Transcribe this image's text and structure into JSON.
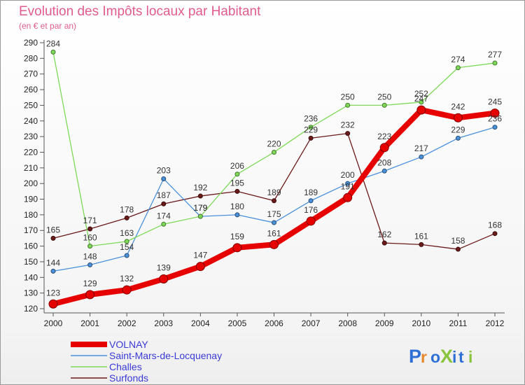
{
  "chart_data": {
    "type": "line",
    "title": "Evolution des Impôts locaux par Habitant",
    "subtitle": "(en € et par an)",
    "categories": [
      "2000",
      "2001",
      "2002",
      "2003",
      "2004",
      "2005",
      "2006",
      "2007",
      "2008",
      "2009",
      "2010",
      "2011",
      "2012"
    ],
    "ylim": [
      120,
      290
    ],
    "yticks": [
      120,
      130,
      140,
      150,
      160,
      170,
      180,
      190,
      200,
      210,
      220,
      230,
      240,
      250,
      260,
      270,
      280,
      290
    ],
    "grid": false,
    "legend": "bottom-left",
    "series": [
      {
        "name": "Surfonds",
        "color": "#6b1a1a",
        "labels": [
          "165",
          "171",
          "178",
          "187",
          "192",
          "195",
          "189",
          "229",
          "232",
          "162",
          "161",
          "158",
          "168"
        ],
        "values": [
          165,
          171,
          178,
          187,
          192,
          195,
          189,
          229,
          232,
          162,
          161,
          158,
          168
        ]
      },
      {
        "name": "Saint-Mars-de-Locquenay",
        "color": "#4a90d9",
        "labels": [
          "144",
          "148",
          "154",
          "203",
          "179",
          "180",
          "175",
          "189",
          "200",
          "208",
          "217",
          "229",
          "236"
        ],
        "values": [
          144,
          148,
          154,
          203,
          179,
          180,
          175,
          189,
          200,
          208,
          217,
          229,
          236
        ]
      },
      {
        "name": "Challes",
        "color": "#7ed957",
        "labels": [
          "284",
          "160",
          "163",
          "174",
          "179",
          "206",
          "220",
          "236",
          "250",
          "250",
          "252",
          "274",
          "277"
        ],
        "values": [
          284,
          160,
          163,
          174,
          179,
          206,
          220,
          236,
          250,
          250,
          252,
          274,
          277
        ]
      },
      {
        "name": "VOLNAY",
        "color": "#e60000",
        "labels": [
          "123",
          "129",
          "132",
          "139",
          "147",
          "159",
          "161",
          "176",
          "191",
          "223",
          "247",
          "242",
          "245"
        ],
        "values": [
          123,
          129,
          132,
          139,
          147,
          159,
          161,
          176,
          191,
          223,
          247,
          242,
          245
        ]
      }
    ]
  },
  "legend": {
    "items": [
      {
        "name": "VOLNAY",
        "color": "#e60000"
      },
      {
        "name": "Saint-Mars-de-Locquenay",
        "color": "#4a90d9"
      },
      {
        "name": "Challes",
        "color": "#7ed957"
      },
      {
        "name": "Surfonds",
        "color": "#6b1a1a"
      }
    ]
  },
  "logo": {
    "text": "ProXiti"
  }
}
